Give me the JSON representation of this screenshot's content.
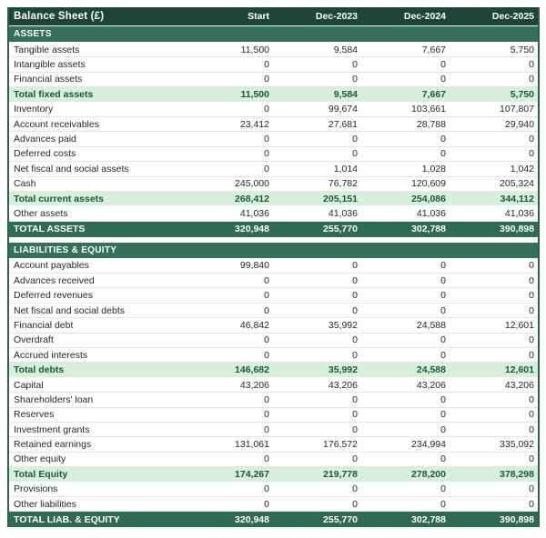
{
  "header": {
    "title": "Balance Sheet (£)",
    "columns": [
      "Start",
      "Dec-2023",
      "Dec-2024",
      "Dec-2025"
    ]
  },
  "sections": [
    {
      "name": "ASSETS",
      "rows": [
        {
          "label": "Tangible assets",
          "values": [
            "11,500",
            "9,584",
            "7,667",
            "5,750"
          ],
          "type": "normal"
        },
        {
          "label": "Intangible assets",
          "values": [
            "0",
            "0",
            "0",
            "0"
          ],
          "type": "normal"
        },
        {
          "label": "Financial assets",
          "values": [
            "0",
            "0",
            "0",
            "0"
          ],
          "type": "normal"
        },
        {
          "label": "Total fixed assets",
          "values": [
            "11,500",
            "9,584",
            "7,667",
            "5,750"
          ],
          "type": "subtotal"
        },
        {
          "label": "Inventory",
          "values": [
            "0",
            "99,674",
            "103,661",
            "107,807"
          ],
          "type": "normal"
        },
        {
          "label": "Account receivables",
          "values": [
            "23,412",
            "27,681",
            "28,788",
            "29,940"
          ],
          "type": "normal"
        },
        {
          "label": "Advances paid",
          "values": [
            "0",
            "0",
            "0",
            "0"
          ],
          "type": "normal"
        },
        {
          "label": "Deferred costs",
          "values": [
            "0",
            "0",
            "0",
            "0"
          ],
          "type": "normal"
        },
        {
          "label": "Net fiscal and social assets",
          "values": [
            "0",
            "1,014",
            "1,028",
            "1,042"
          ],
          "type": "normal"
        },
        {
          "label": "Cash",
          "values": [
            "245,000",
            "76,782",
            "120,609",
            "205,324"
          ],
          "type": "normal"
        },
        {
          "label": "Total current assets",
          "values": [
            "268,412",
            "205,151",
            "254,086",
            "344,112"
          ],
          "type": "subtotal"
        },
        {
          "label": "Other assets",
          "values": [
            "41,036",
            "41,036",
            "41,036",
            "41,036"
          ],
          "type": "normal"
        }
      ],
      "total": {
        "label": "TOTAL ASSETS",
        "values": [
          "320,948",
          "255,770",
          "302,788",
          "390,898"
        ]
      }
    },
    {
      "name": "LIABILITIES & EQUITY",
      "rows": [
        {
          "label": "Account payables",
          "values": [
            "99,840",
            "0",
            "0",
            "0"
          ],
          "type": "normal"
        },
        {
          "label": "Advances received",
          "values": [
            "0",
            "0",
            "0",
            "0"
          ],
          "type": "normal"
        },
        {
          "label": "Deferred revenues",
          "values": [
            "0",
            "0",
            "0",
            "0"
          ],
          "type": "normal"
        },
        {
          "label": "Net fiscal and social debts",
          "values": [
            "0",
            "0",
            "0",
            "0"
          ],
          "type": "normal"
        },
        {
          "label": "Financial debt",
          "values": [
            "46,842",
            "35,992",
            "24,588",
            "12,601"
          ],
          "type": "normal"
        },
        {
          "label": "Overdraft",
          "values": [
            "0",
            "0",
            "0",
            "0"
          ],
          "type": "normal"
        },
        {
          "label": "Accrued interests",
          "values": [
            "0",
            "0",
            "0",
            "0"
          ],
          "type": "normal"
        },
        {
          "label": "Total debts",
          "values": [
            "146,682",
            "35,992",
            "24,588",
            "12,601"
          ],
          "type": "subtotal"
        },
        {
          "label": "Capital",
          "values": [
            "43,206",
            "43,206",
            "43,206",
            "43,206"
          ],
          "type": "normal"
        },
        {
          "label": "Shareholders' loan",
          "values": [
            "0",
            "0",
            "0",
            "0"
          ],
          "type": "normal"
        },
        {
          "label": "Reserves",
          "values": [
            "0",
            "0",
            "0",
            "0"
          ],
          "type": "normal"
        },
        {
          "label": "Investment grants",
          "values": [
            "0",
            "0",
            "0",
            "0"
          ],
          "type": "normal"
        },
        {
          "label": "Retained earnings",
          "values": [
            "131,061",
            "176,572",
            "234,994",
            "335,092"
          ],
          "type": "normal"
        },
        {
          "label": "Other equity",
          "values": [
            "0",
            "0",
            "0",
            "0"
          ],
          "type": "normal"
        },
        {
          "label": "Total Equity",
          "values": [
            "174,267",
            "219,778",
            "278,200",
            "378,298"
          ],
          "type": "subtotal"
        },
        {
          "label": "Provisions",
          "values": [
            "0",
            "0",
            "0",
            "0"
          ],
          "type": "normal"
        },
        {
          "label": "Other liabilities",
          "values": [
            "0",
            "0",
            "0",
            "0"
          ],
          "type": "normal"
        }
      ],
      "total": {
        "label": "TOTAL LIAB. & EQUITY",
        "values": [
          "320,948",
          "255,770",
          "302,788",
          "390,898"
        ]
      }
    }
  ],
  "colors": {
    "header_bg": "#1e4636",
    "section_bg": "#35705a",
    "total_bg": "#2f6b51",
    "subtotal_bg": "#d8efdc",
    "subtotal_text": "#17593b",
    "body_text": "#212b24"
  }
}
